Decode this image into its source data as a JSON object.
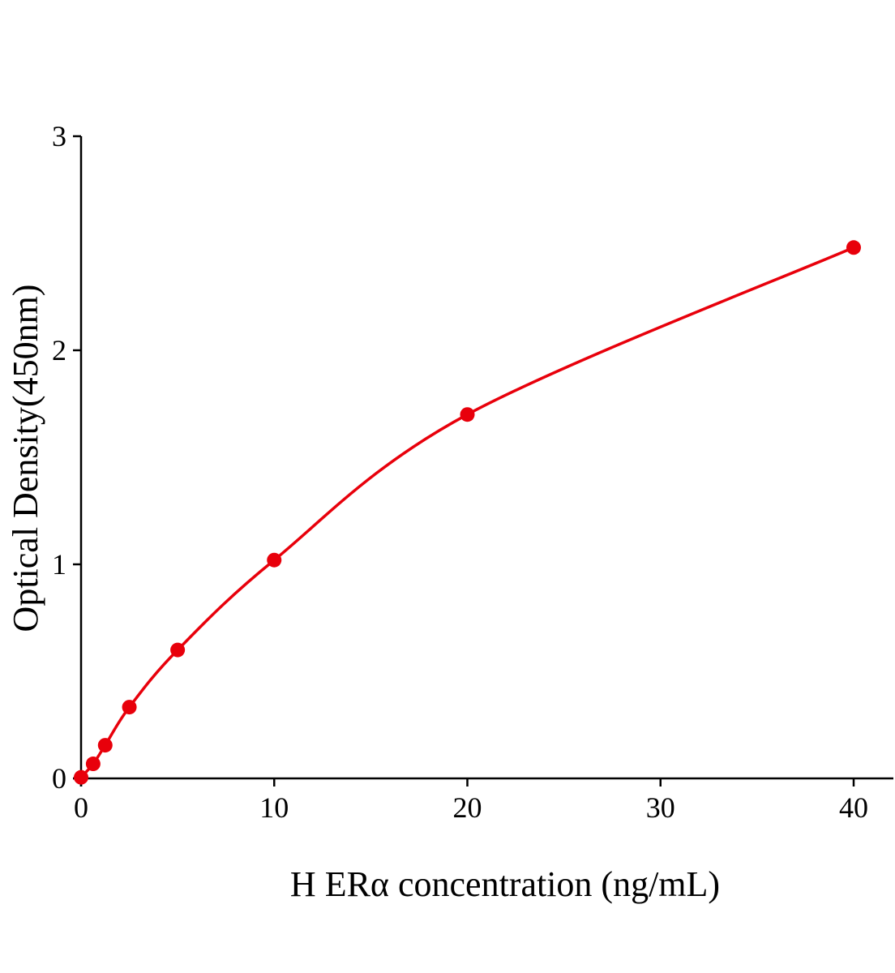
{
  "chart_data": {
    "type": "line",
    "title": "",
    "xlabel": "H ERα concentration (ng/mL)",
    "ylabel": "Optical Density(450nm)",
    "xlim": [
      0,
      42
    ],
    "ylim": [
      0,
      3
    ],
    "xticks": [
      0,
      10,
      20,
      30,
      40
    ],
    "yticks": [
      0,
      1,
      2,
      3
    ],
    "grid": false,
    "legend": "none",
    "series": [
      {
        "x": [
          0,
          0.625,
          1.25,
          2.5,
          5,
          10,
          20,
          40
        ],
        "y": [
          0.005,
          0.068,
          0.155,
          0.333,
          0.6,
          1.02,
          1.7,
          2.48
        ],
        "color": "#e8000b",
        "markers": true,
        "fit_curve": true
      }
    ]
  }
}
